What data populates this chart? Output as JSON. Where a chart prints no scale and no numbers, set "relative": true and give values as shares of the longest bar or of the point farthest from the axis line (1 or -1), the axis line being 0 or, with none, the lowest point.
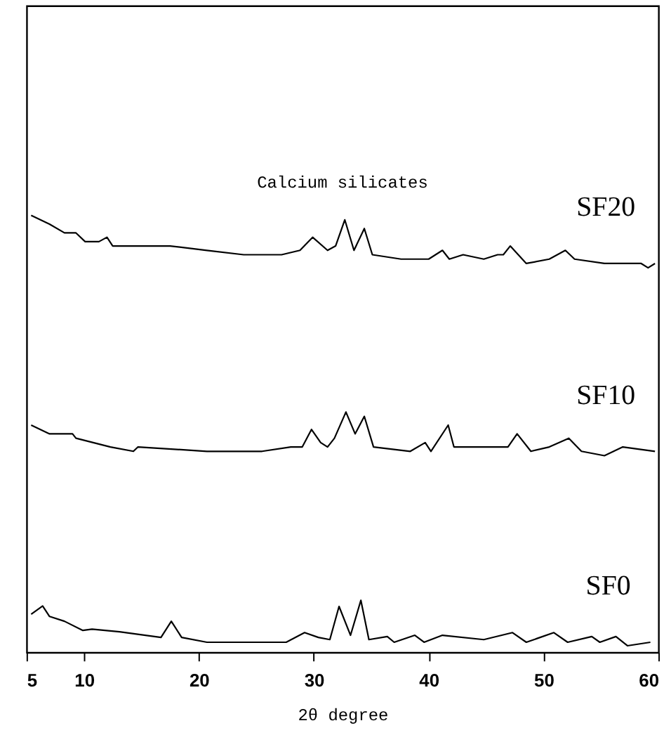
{
  "chart_data": {
    "type": "line",
    "relative": true,
    "xlabel": "2θ degree",
    "xlim": [
      5,
      60
    ],
    "xticks": [
      5,
      10,
      20,
      30,
      40,
      50,
      60
    ],
    "annotations": [
      "Calcium silicates"
    ],
    "grid": false,
    "marker": "none",
    "line_style": "solid",
    "series": [
      {
        "name": "SF20",
        "color": "#000000",
        "x": [
          5.4,
          6.2,
          7.0,
          8.3,
          9.3,
          10.1,
          11.3,
          12.0,
          12.5,
          14.7,
          17.5,
          20.7,
          23.9,
          25.5,
          27.2,
          28.8,
          29.9,
          31.2,
          31.9,
          32.7,
          33.5,
          34.4,
          35.1,
          37.6,
          40.0,
          41.2,
          41.8,
          43.0,
          44.8,
          46.0,
          46.5,
          47.1,
          48.5,
          50.5,
          51.9,
          52.7,
          55.3,
          56.9,
          58.5,
          59.1,
          59.7
        ],
        "values": [
          1.0,
          0.99,
          0.98,
          0.96,
          0.96,
          0.94,
          0.94,
          0.95,
          0.93,
          0.93,
          0.93,
          0.92,
          0.91,
          0.91,
          0.91,
          0.92,
          0.95,
          0.92,
          0.93,
          0.99,
          0.92,
          0.97,
          0.91,
          0.9,
          0.9,
          0.92,
          0.9,
          0.91,
          0.9,
          0.91,
          0.91,
          0.93,
          0.89,
          0.9,
          0.92,
          0.9,
          0.89,
          0.89,
          0.89,
          0.88,
          0.89
        ]
      },
      {
        "name": "SF10",
        "color": "#000000",
        "x": [
          5.4,
          7.0,
          9.0,
          9.3,
          12.3,
          14.3,
          14.7,
          20.7,
          25.5,
          28.0,
          29.0,
          29.8,
          30.6,
          31.2,
          31.8,
          32.8,
          33.6,
          34.4,
          35.2,
          38.4,
          39.7,
          40.2,
          41.7,
          42.2,
          44.8,
          46.9,
          47.7,
          48.9,
          50.5,
          52.2,
          53.3,
          55.3,
          56.9,
          59.7
        ],
        "values": [
          0.52,
          0.5,
          0.5,
          0.49,
          0.47,
          0.46,
          0.47,
          0.46,
          0.46,
          0.47,
          0.47,
          0.51,
          0.48,
          0.47,
          0.49,
          0.55,
          0.5,
          0.54,
          0.47,
          0.46,
          0.48,
          0.46,
          0.52,
          0.47,
          0.47,
          0.47,
          0.5,
          0.46,
          0.47,
          0.49,
          0.46,
          0.45,
          0.47,
          0.46
        ]
      },
      {
        "name": "SF0",
        "color": "#000000",
        "x": [
          5.4,
          6.4,
          7.0,
          8.3,
          9.9,
          10.7,
          13.1,
          16.7,
          17.6,
          18.5,
          20.7,
          24.7,
          27.6,
          29.2,
          30.4,
          31.4,
          32.2,
          33.2,
          34.1,
          34.8,
          36.4,
          37.0,
          38.8,
          39.6,
          41.2,
          44.8,
          47.3,
          48.5,
          49.7,
          50.9,
          52.1,
          54.2,
          54.9,
          56.3,
          57.3,
          59.3
        ],
        "values": [
          0.087,
          0.106,
          0.082,
          0.071,
          0.05,
          0.053,
          0.047,
          0.034,
          0.071,
          0.034,
          0.023,
          0.023,
          0.023,
          0.045,
          0.034,
          0.029,
          0.105,
          0.039,
          0.119,
          0.029,
          0.036,
          0.023,
          0.039,
          0.023,
          0.039,
          0.029,
          0.045,
          0.023,
          0.034,
          0.045,
          0.023,
          0.036,
          0.023,
          0.036,
          0.015,
          0.023
        ]
      }
    ]
  }
}
